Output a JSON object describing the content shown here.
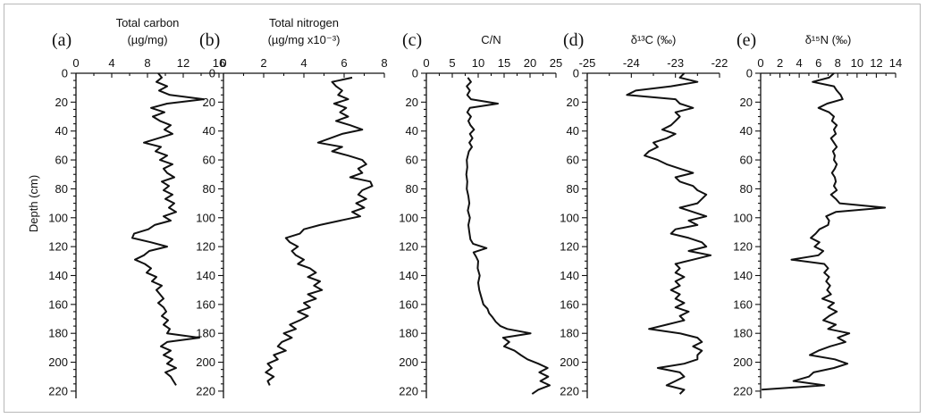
{
  "chart_data": [
    {
      "type": "line",
      "panel_label": "(a)",
      "title": [
        "Total carbon",
        "(µg/mg)"
      ],
      "ylabel": "Depth (cm)",
      "ylim": [
        0,
        225
      ],
      "y_ticks": [
        0,
        20,
        40,
        60,
        80,
        100,
        120,
        140,
        160,
        180,
        200,
        220
      ],
      "xlim": [
        0,
        16
      ],
      "x_ticks": [
        0,
        4,
        8,
        12,
        16
      ],
      "x_tick_labels": [
        "0",
        "4",
        "8",
        "12",
        "16"
      ],
      "series": [
        {
          "depth": [
            0,
            3,
            6,
            9,
            12,
            15,
            18,
            21,
            24,
            27,
            30,
            33,
            36,
            39,
            42,
            45,
            48,
            51,
            54,
            57,
            60,
            63,
            66,
            69,
            72,
            75,
            78,
            81,
            84,
            87,
            90,
            93,
            96,
            99,
            102,
            105,
            108,
            111,
            114,
            117,
            120,
            123,
            126,
            129,
            132,
            135,
            138,
            141,
            144,
            147,
            150,
            153,
            156,
            159,
            162,
            165,
            168,
            171,
            174,
            177,
            180,
            183,
            186,
            189,
            192,
            195,
            198,
            201,
            204,
            207,
            210,
            213,
            216
          ],
          "values": [
            9.2,
            9.6,
            9.0,
            10.2,
            9.3,
            10.5,
            14.3,
            10.2,
            8.4,
            9.9,
            8.6,
            9.4,
            10.6,
            9.9,
            10.8,
            9.2,
            7.6,
            9.5,
            8.9,
            10.2,
            9.4,
            10.8,
            9.8,
            10.2,
            11.0,
            9.6,
            10.4,
            9.8,
            10.8,
            10.0,
            11.0,
            10.4,
            11.2,
            9.8,
            10.6,
            8.8,
            8.1,
            6.5,
            6.3,
            8.4,
            10.2,
            8.2,
            7.6,
            6.6,
            7.7,
            8.4,
            7.9,
            9.0,
            8.5,
            9.6,
            9.0,
            9.4,
            9.8,
            9.2,
            9.8,
            10.1,
            9.6,
            10.3,
            9.8,
            10.5,
            10.2,
            13.8,
            10.2,
            9.5,
            10.6,
            9.8,
            10.8,
            10.2,
            11.2,
            10.0,
            10.6,
            10.9,
            11.2
          ]
        }
      ]
    },
    {
      "type": "line",
      "panel_label": "(b)",
      "title": [
        "Total nitrogen",
        "(µg/mg x10⁻³)"
      ],
      "ylabel": "",
      "ylim": [
        0,
        225
      ],
      "y_ticks": [
        0,
        20,
        40,
        60,
        80,
        100,
        120,
        140,
        160,
        180,
        200,
        220
      ],
      "xlim": [
        0,
        8
      ],
      "x_ticks": [
        0,
        2,
        4,
        6,
        8
      ],
      "x_tick_labels": [
        "0",
        "2",
        "4",
        "6",
        "8"
      ],
      "series": [
        {
          "depth": [
            3,
            6,
            9,
            12,
            15,
            18,
            21,
            24,
            27,
            30,
            33,
            36,
            39,
            42,
            45,
            48,
            51,
            54,
            57,
            60,
            63,
            66,
            69,
            72,
            75,
            78,
            81,
            84,
            87,
            90,
            93,
            96,
            99,
            102,
            105,
            108,
            111,
            114,
            117,
            120,
            123,
            126,
            129,
            132,
            135,
            138,
            141,
            144,
            147,
            150,
            153,
            156,
            159,
            162,
            165,
            168,
            171,
            174,
            177,
            180,
            183,
            186,
            189,
            192,
            195,
            198,
            201,
            204,
            207,
            210,
            213,
            216
          ],
          "values": [
            6.4,
            5.4,
            5.6,
            5.9,
            5.7,
            6.2,
            5.5,
            6.1,
            5.8,
            6.2,
            5.6,
            6.3,
            6.9,
            5.9,
            5.3,
            4.7,
            5.9,
            5.4,
            6.2,
            6.9,
            7.1,
            6.7,
            6.9,
            6.3,
            7.3,
            7.4,
            6.9,
            6.7,
            7.1,
            6.6,
            7.0,
            6.4,
            6.8,
            5.8,
            4.8,
            4.0,
            3.8,
            3.1,
            3.3,
            3.7,
            3.4,
            3.6,
            4.0,
            3.7,
            4.3,
            4.6,
            4.2,
            4.8,
            4.5,
            4.9,
            4.2,
            4.6,
            4.0,
            4.3,
            3.7,
            4.2,
            3.8,
            3.3,
            3.6,
            3.0,
            3.4,
            2.9,
            2.7,
            3.1,
            2.5,
            2.7,
            2.2,
            2.4,
            2.1,
            2.5,
            2.2,
            2.3
          ]
        }
      ]
    },
    {
      "type": "line",
      "panel_label": "(c)",
      "title": [
        "C/N"
      ],
      "ylabel": "",
      "ylim": [
        0,
        225
      ],
      "y_ticks": [
        0,
        20,
        40,
        60,
        80,
        100,
        120,
        140,
        160,
        180,
        200,
        220
      ],
      "xlim": [
        0,
        25
      ],
      "x_ticks": [
        0,
        5,
        10,
        15,
        20,
        25
      ],
      "x_tick_labels": [
        "0",
        "5",
        "10",
        "15",
        "20",
        "25"
      ],
      "series": [
        {
          "depth": [
            3,
            6,
            9,
            12,
            15,
            18,
            21,
            24,
            27,
            30,
            33,
            36,
            39,
            42,
            45,
            48,
            51,
            54,
            57,
            60,
            65,
            70,
            75,
            80,
            85,
            90,
            95,
            100,
            105,
            110,
            115,
            118,
            121,
            124,
            127,
            130,
            135,
            140,
            145,
            150,
            155,
            160,
            163,
            166,
            169,
            172,
            175,
            177,
            180,
            183,
            186,
            189,
            192,
            195,
            198,
            201,
            204,
            207,
            210,
            213,
            216,
            219,
            222
          ],
          "values": [
            8.0,
            8.6,
            7.8,
            8.4,
            7.9,
            8.6,
            13.8,
            8.4,
            7.9,
            8.6,
            8.1,
            8.5,
            9.2,
            8.4,
            8.9,
            8.3,
            8.8,
            8.2,
            8.0,
            7.8,
            7.9,
            7.7,
            7.9,
            7.8,
            8.1,
            8.3,
            8.0,
            8.4,
            8.1,
            8.3,
            8.5,
            9.0,
            11.6,
            9.1,
            9.6,
            10.0,
            9.9,
            10.3,
            10.0,
            10.2,
            10.6,
            11.0,
            11.8,
            12.1,
            12.8,
            13.4,
            14.3,
            15.6,
            20.1,
            14.8,
            16.0,
            15.0,
            17.0,
            18.2,
            19.5,
            21.6,
            23.4,
            21.8,
            23.5,
            22.0,
            23.8,
            21.6,
            20.4
          ]
        }
      ]
    },
    {
      "type": "line",
      "panel_label": "(d)",
      "title": [
        "δ¹³C (‰)"
      ],
      "ylabel": "",
      "ylim": [
        0,
        225
      ],
      "y_ticks": [
        0,
        20,
        40,
        60,
        80,
        100,
        120,
        140,
        160,
        180,
        200,
        220
      ],
      "xlim": [
        -25,
        -22
      ],
      "x_ticks": [
        -25,
        -24,
        -23,
        -22
      ],
      "x_tick_labels": [
        "-25",
        "-24",
        "-23",
        "-22"
      ],
      "series": [
        {
          "depth": [
            0,
            3,
            6,
            9,
            12,
            15,
            18,
            21,
            24,
            27,
            30,
            33,
            36,
            39,
            42,
            45,
            48,
            51,
            54,
            57,
            60,
            63,
            66,
            69,
            72,
            75,
            78,
            81,
            84,
            87,
            90,
            93,
            96,
            99,
            102,
            105,
            108,
            111,
            114,
            117,
            120,
            123,
            126,
            129,
            132,
            135,
            138,
            141,
            144,
            147,
            150,
            153,
            156,
            159,
            162,
            165,
            168,
            171,
            174,
            177,
            180,
            183,
            186,
            189,
            192,
            195,
            198,
            201,
            204,
            207,
            210,
            213,
            216,
            219,
            222
          ],
          "values": [
            -22.8,
            -22.9,
            -22.5,
            -23.1,
            -23.9,
            -24.1,
            -23.0,
            -22.9,
            -22.6,
            -23.0,
            -22.9,
            -23.0,
            -23.1,
            -23.3,
            -23.0,
            -23.2,
            -23.5,
            -23.4,
            -23.6,
            -23.7,
            -23.4,
            -23.2,
            -22.9,
            -22.6,
            -23.0,
            -22.9,
            -22.6,
            -22.5,
            -22.3,
            -22.4,
            -22.5,
            -22.9,
            -22.6,
            -22.3,
            -22.7,
            -22.5,
            -23.0,
            -23.1,
            -22.7,
            -22.4,
            -22.3,
            -22.7,
            -22.2,
            -22.6,
            -23.0,
            -22.9,
            -23.0,
            -22.8,
            -23.0,
            -22.9,
            -23.1,
            -22.9,
            -23.0,
            -22.8,
            -23.0,
            -22.7,
            -22.9,
            -22.8,
            -23.2,
            -23.6,
            -22.9,
            -22.5,
            -22.4,
            -22.6,
            -22.4,
            -22.5,
            -22.5,
            -22.8,
            -23.4,
            -22.9,
            -22.8,
            -23.0,
            -23.2,
            -22.8,
            -22.9
          ]
        }
      ]
    },
    {
      "type": "line",
      "panel_label": "(e)",
      "title": [
        "δ¹⁵N (‰)"
      ],
      "ylabel": "",
      "ylim": [
        0,
        225
      ],
      "y_ticks": [
        0,
        20,
        40,
        60,
        80,
        100,
        120,
        140,
        160,
        180,
        200,
        220
      ],
      "xlim": [
        0,
        14
      ],
      "x_ticks": [
        0,
        2,
        4,
        6,
        8,
        10,
        12,
        14
      ],
      "x_tick_labels": [
        "0",
        "2",
        "4",
        "6",
        "8",
        "10",
        "12",
        "14"
      ],
      "series": [
        {
          "depth": [
            0,
            3,
            6,
            9,
            12,
            15,
            18,
            21,
            24,
            27,
            30,
            33,
            36,
            39,
            42,
            45,
            48,
            51,
            54,
            57,
            60,
            63,
            66,
            69,
            72,
            75,
            78,
            81,
            84,
            87,
            90,
            93,
            96,
            99,
            102,
            105,
            108,
            111,
            114,
            117,
            120,
            123,
            126,
            129,
            132,
            135,
            138,
            141,
            144,
            147,
            150,
            153,
            156,
            159,
            162,
            165,
            168,
            171,
            174,
            177,
            180,
            183,
            186,
            189,
            192,
            195,
            198,
            201,
            204,
            207,
            210,
            213,
            216,
            219
          ],
          "values": [
            7.6,
            7.1,
            5.4,
            7.6,
            7.9,
            8.3,
            8.5,
            6.9,
            6.0,
            7.1,
            7.6,
            7.4,
            7.9,
            7.6,
            7.8,
            7.3,
            7.6,
            7.9,
            7.5,
            7.7,
            7.6,
            7.9,
            7.7,
            7.4,
            7.7,
            7.8,
            7.6,
            7.9,
            7.3,
            7.8,
            8.2,
            12.9,
            7.8,
            6.8,
            7.1,
            7.0,
            6.1,
            5.7,
            5.2,
            6.1,
            5.6,
            6.5,
            6.0,
            3.2,
            6.6,
            7.0,
            6.6,
            7.1,
            6.8,
            7.2,
            6.9,
            7.3,
            6.4,
            7.6,
            7.0,
            7.9,
            7.1,
            6.5,
            7.8,
            7.0,
            9.2,
            8.0,
            8.8,
            7.2,
            6.0,
            5.1,
            7.7,
            9.0,
            7.6,
            5.5,
            5.0,
            3.4,
            6.6,
            0.1
          ]
        }
      ]
    }
  ]
}
